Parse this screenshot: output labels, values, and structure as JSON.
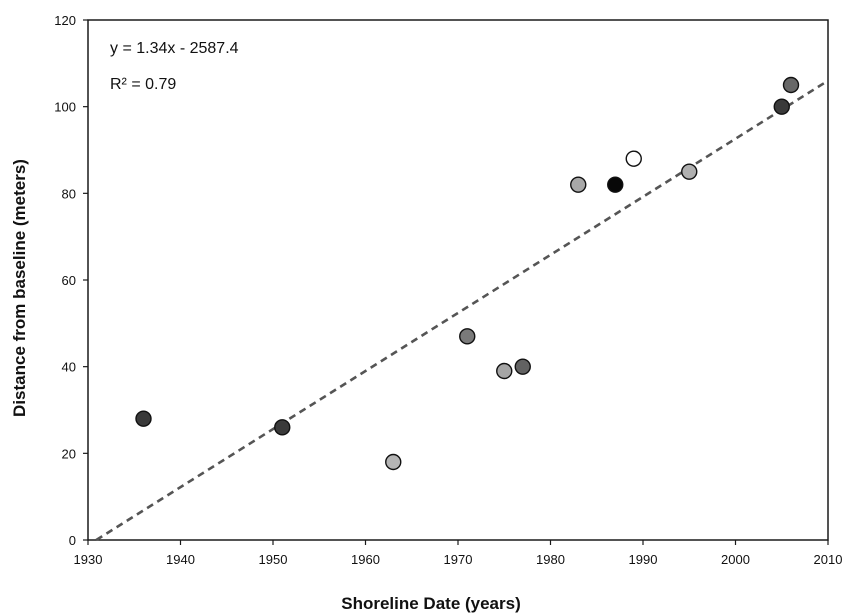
{
  "chart_data": {
    "type": "scatter",
    "xlabel": "Shoreline Date (years)",
    "ylabel": "Distance from baseline (meters)",
    "xlim": [
      1930,
      2010
    ],
    "ylim": [
      0,
      120
    ],
    "xticks": [
      "1930",
      "1940",
      "1950",
      "1960",
      "1970",
      "1980",
      "1990",
      "2000",
      "2010"
    ],
    "yticks": [
      "0",
      "20",
      "40",
      "60",
      "80",
      "100",
      "120"
    ],
    "grid": false,
    "legend": "none",
    "annotations": {
      "equation": "y = 1.34x - 2587.4",
      "r_squared": "R² = 0.79"
    },
    "trendline": {
      "slope": 1.34,
      "intercept": -2587.4,
      "style": "dashed",
      "color": "#555555"
    },
    "points": [
      {
        "x": 1936,
        "y": 28,
        "fill": "#3a3a3a"
      },
      {
        "x": 1951,
        "y": 26,
        "fill": "#3a3a3a"
      },
      {
        "x": 1963,
        "y": 18,
        "fill": "#b5b5b5"
      },
      {
        "x": 1971,
        "y": 47,
        "fill": "#7a7a7a"
      },
      {
        "x": 1975,
        "y": 39,
        "fill": "#a5a5a5"
      },
      {
        "x": 1977,
        "y": 40,
        "fill": "#626262"
      },
      {
        "x": 1983,
        "y": 82,
        "fill": "#a8a8a8"
      },
      {
        "x": 1987,
        "y": 82,
        "fill": "#080808"
      },
      {
        "x": 1989,
        "y": 88,
        "fill": "#ffffff"
      },
      {
        "x": 1995,
        "y": 85,
        "fill": "#b0b0b0"
      },
      {
        "x": 2005,
        "y": 100,
        "fill": "#3a3a3a"
      },
      {
        "x": 2006,
        "y": 105,
        "fill": "#686868"
      }
    ]
  }
}
